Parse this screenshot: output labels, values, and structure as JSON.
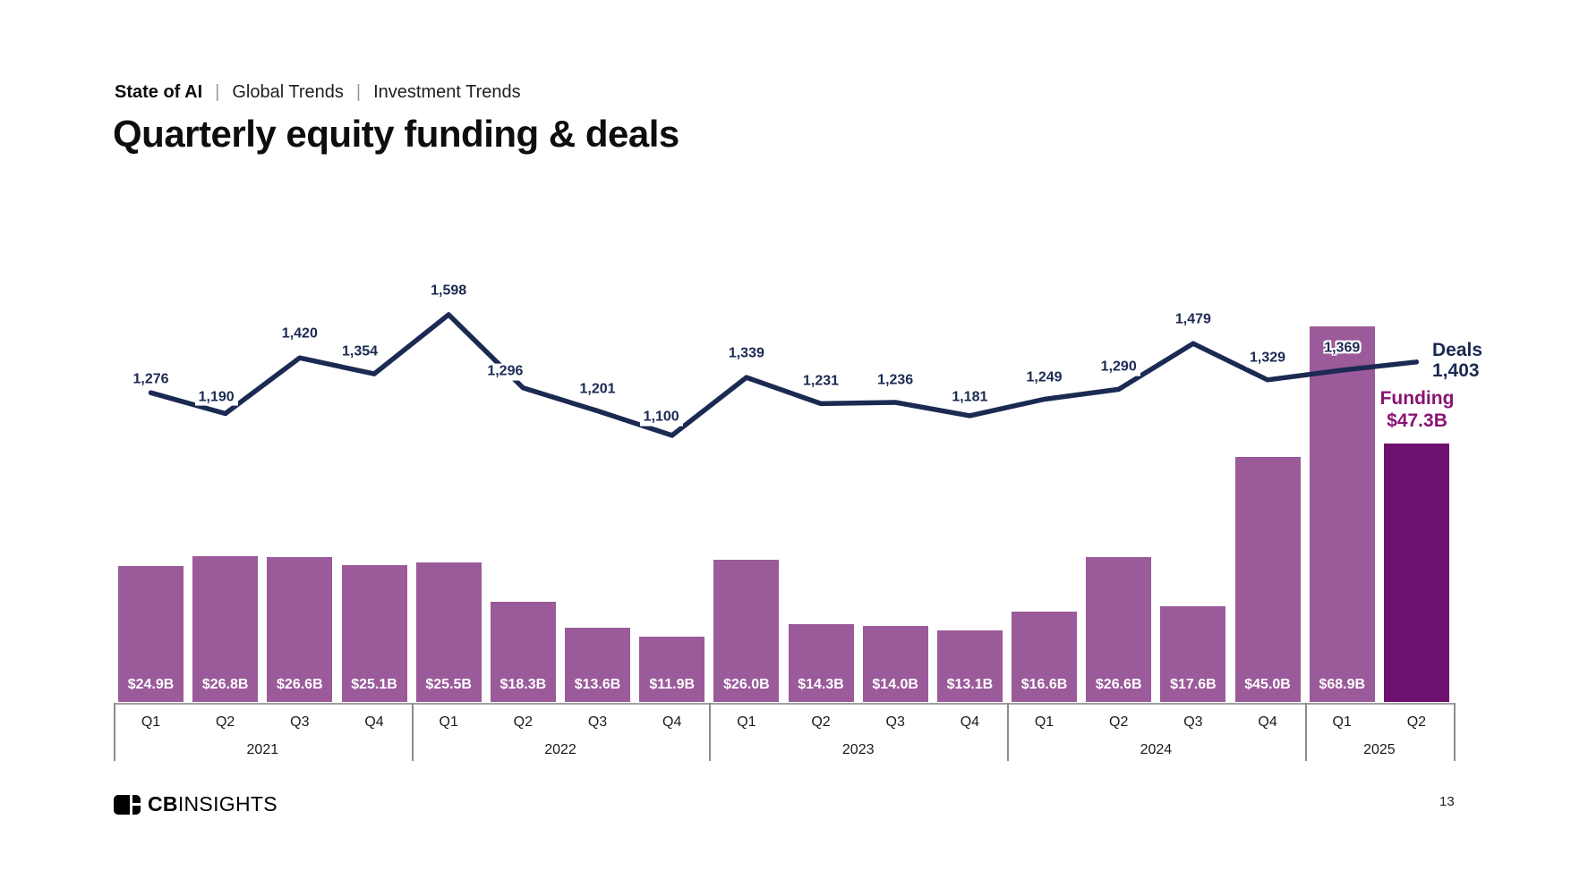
{
  "breadcrumb": {
    "items": [
      "State of AI",
      "Global Trends",
      "Investment Trends"
    ],
    "separator": "|"
  },
  "title": "Quarterly equity funding & deals",
  "footer": {
    "logo_bold": "CB",
    "logo_rest": "INSIGHTS",
    "page_number": "13"
  },
  "colors": {
    "bar": "#9b5a9a",
    "bar_highlight": "#6e1070",
    "line": "#1b2a52",
    "deals_text": "#1b2a52",
    "funding_text": "#8a1473",
    "axis": "#8c8c8c"
  },
  "chart_data": {
    "type": "bar+line",
    "title": "Quarterly equity funding & deals",
    "grid": false,
    "legend_position": "right",
    "x_groups": [
      {
        "year": "2021",
        "quarters": [
          "Q1",
          "Q2",
          "Q3",
          "Q4"
        ]
      },
      {
        "year": "2022",
        "quarters": [
          "Q1",
          "Q2",
          "Q3",
          "Q4"
        ]
      },
      {
        "year": "2023",
        "quarters": [
          "Q1",
          "Q2",
          "Q3",
          "Q4"
        ]
      },
      {
        "year": "2024",
        "quarters": [
          "Q1",
          "Q2",
          "Q3",
          "Q4"
        ]
      },
      {
        "year": "2025",
        "quarters": [
          "Q1",
          "Q2"
        ]
      }
    ],
    "series": [
      {
        "name": "Funding",
        "type": "bar",
        "unit": "$B",
        "values": [
          24.9,
          26.8,
          26.6,
          25.1,
          25.5,
          18.3,
          13.6,
          11.9,
          26.0,
          14.3,
          14.0,
          13.1,
          16.6,
          26.6,
          17.6,
          45.0,
          68.9,
          47.3
        ],
        "labels": [
          "$24.9B",
          "$26.8B",
          "$26.6B",
          "$25.1B",
          "$25.5B",
          "$18.3B",
          "$13.6B",
          "$11.9B",
          "$26.0B",
          "$14.3B",
          "$14.0B",
          "$13.1B",
          "$16.6B",
          "$26.6B",
          "$17.6B",
          "$45.0B",
          "$68.9B",
          null
        ],
        "highlight_last": true
      },
      {
        "name": "Deals",
        "type": "line",
        "values": [
          1276,
          1190,
          1420,
          1354,
          1598,
          1296,
          1201,
          1100,
          1339,
          1231,
          1236,
          1181,
          1249,
          1290,
          1479,
          1329,
          1369,
          1403
        ],
        "labels": [
          "1,276",
          "1,190",
          "1,420",
          "1,354",
          "1,598",
          "1,296",
          "1,201",
          "1,100",
          "1,339",
          "1,231",
          "1,236",
          "1,181",
          "1,249",
          "1,290",
          "1,479",
          "1,329",
          "1,369",
          null
        ]
      }
    ],
    "annotations": {
      "deals": {
        "label": "Deals",
        "value": "1,403"
      },
      "funding": {
        "label": "Funding",
        "value": "$47.3B"
      }
    }
  }
}
